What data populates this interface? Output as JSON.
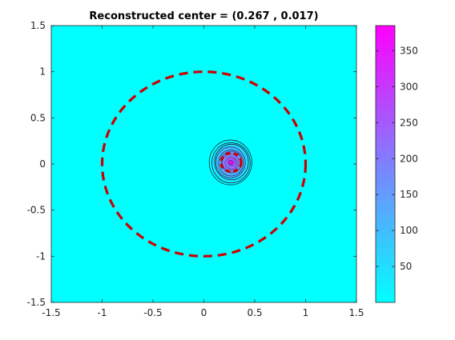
{
  "chart_data": {
    "type": "heatmap",
    "title": "Reconstructed center = (0.267 , 0.017)",
    "xlabel": "",
    "ylabel": "",
    "xlim": [
      -1.5,
      1.5
    ],
    "ylim": [
      -1.5,
      1.5
    ],
    "x_ticks": [
      -1.5,
      -1,
      -0.5,
      0,
      0.5,
      1,
      1.5
    ],
    "x_tick_labels": [
      "-1.5",
      "-1",
      "-0.5",
      "0",
      "0.5",
      "1",
      "1.5"
    ],
    "y_ticks": [
      1.5,
      1,
      0.5,
      0,
      -0.5,
      -1,
      -1.5
    ],
    "y_tick_labels": [
      "1.5",
      "1",
      "0.5",
      "0",
      "-0.5",
      "-1",
      "-1.5"
    ],
    "grid": false,
    "background_level": 0,
    "peak": {
      "x": 0.267,
      "y": 0.017,
      "value": 385
    },
    "contour_levels": [
      40,
      80,
      120,
      160,
      200,
      240,
      280,
      320,
      360
    ],
    "reference_circle": {
      "center": [
        0,
        0
      ],
      "radius": 1,
      "color": "#cc0000",
      "style": "dashed"
    },
    "inclusion_circle": {
      "center": [
        0.267,
        0.017
      ],
      "radius": 0.1,
      "color": "#cc0000",
      "style": "dashed"
    },
    "colorbar": {
      "range": [
        0,
        385
      ],
      "ticks": [
        50,
        100,
        150,
        200,
        250,
        300,
        350
      ],
      "tick_labels": [
        "50",
        "100",
        "150",
        "200",
        "250",
        "300",
        "350"
      ],
      "colormap": "cool",
      "color_low": "#00ffff",
      "color_high": "#ff00ff"
    }
  }
}
